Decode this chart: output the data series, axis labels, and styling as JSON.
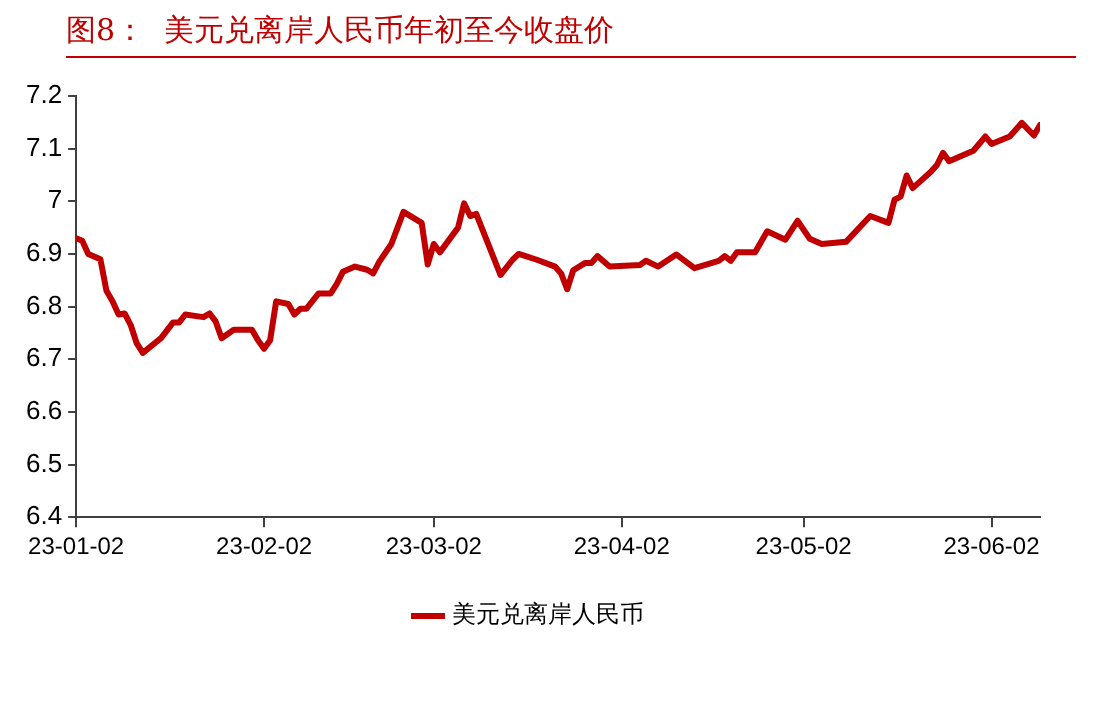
{
  "chart_data": {
    "type": "line",
    "title": "图8：  美元兑离岸人民币年初至今收盘价",
    "x": [
      "--01-02",
      "--01-03",
      "--01-04",
      "--01-06",
      "--01-07",
      "--01-08",
      "--01-09",
      "--01-10",
      "--01-11",
      "--01-12",
      "--01-13",
      "--01-16",
      "--01-18",
      "--01-19",
      "--01-20",
      "--01-23",
      "--01-24",
      "--01-25",
      "--01-26",
      "--01-28",
      "--01-31",
      "--02-01",
      "--02-02",
      "--02-03",
      "--02-04",
      "--02-06",
      "--02-07",
      "--02-08",
      "--02-09",
      "--02-11",
      "--02-13",
      "--02-14",
      "--02-15",
      "--02-17",
      "--02-19",
      "--02-20",
      "--02-21",
      "--02-23",
      "--02-25",
      "--02-28",
      "--03-01",
      "--03-02",
      "--03-03",
      "--03-06",
      "--03-07",
      "--03-08",
      "--03-09",
      "--03-13",
      "--03-15",
      "--03-16",
      "--03-19",
      "--03-22",
      "--03-23",
      "--03-24",
      "--03-25",
      "--03-27",
      "--03-28",
      "--03-29",
      "--03-31",
      "--04-05",
      "--04-06",
      "--04-08",
      "--04-11",
      "--04-14",
      "--04-18",
      "--04-19",
      "--04-20",
      "--04-21",
      "--04-24",
      "--04-26",
      "--04-29",
      "--05-01",
      "--05-03",
      "--05-05",
      "--05-09",
      "--05-13",
      "--05-16",
      "--05-17",
      "--05-18",
      "--05-19",
      "--05-20",
      "--05-23",
      "--05-24",
      "--05-25",
      "--05-26",
      "--05-30",
      "--06-01",
      "--06-02",
      "--06-05",
      "--06-07",
      "--06-09",
      "--06-10"
    ],
    "series": [
      {
        "name": "美元兑离岸人民币",
        "color": "#c00000",
        "values": [
          6.93,
          6.925,
          6.9,
          6.89,
          6.83,
          6.81,
          6.785,
          6.787,
          6.765,
          6.73,
          6.712,
          6.74,
          6.77,
          6.77,
          6.785,
          6.78,
          6.787,
          6.772,
          6.74,
          6.756,
          6.756,
          6.736,
          6.72,
          6.736,
          6.81,
          6.805,
          6.785,
          6.796,
          6.796,
          6.825,
          6.825,
          6.843,
          6.866,
          6.876,
          6.87,
          6.863,
          6.885,
          6.919,
          6.98,
          6.959,
          6.88,
          6.919,
          6.903,
          6.95,
          6.996,
          6.972,
          6.976,
          6.86,
          6.889,
          6.9,
          6.889,
          6.876,
          6.863,
          6.833,
          6.869,
          6.883,
          6.883,
          6.896,
          6.876,
          6.879,
          6.887,
          6.876,
          6.899,
          6.873,
          6.887,
          6.896,
          6.887,
          6.903,
          6.903,
          6.943,
          6.927,
          6.963,
          6.929,
          6.919,
          6.923,
          6.972,
          6.959,
          7.003,
          7.009,
          7.049,
          7.025,
          7.056,
          7.069,
          7.092,
          7.076,
          7.096,
          7.123,
          7.109,
          7.123,
          7.149,
          7.125,
          7.145
        ]
      }
    ],
    "xlim": [
      "--01-02",
      "--06-10"
    ],
    "xticks": [
      {
        "value": "--01-02",
        "label": "23-01-02"
      },
      {
        "value": "--02-02",
        "label": "23-02-02"
      },
      {
        "value": "--03-02",
        "label": "23-03-02"
      },
      {
        "value": "--04-02",
        "label": "23-04-02"
      },
      {
        "value": "--05-02",
        "label": "23-05-02"
      },
      {
        "value": "--06-02",
        "label": "23-06-02"
      }
    ],
    "ylim": [
      6.4,
      7.2
    ],
    "yticks": [
      6.4,
      6.5,
      6.6,
      6.7,
      6.8,
      6.9,
      7,
      7.1,
      7.2
    ],
    "grid": false,
    "legend": "bottom",
    "marker": "none",
    "line_style": "solid"
  }
}
